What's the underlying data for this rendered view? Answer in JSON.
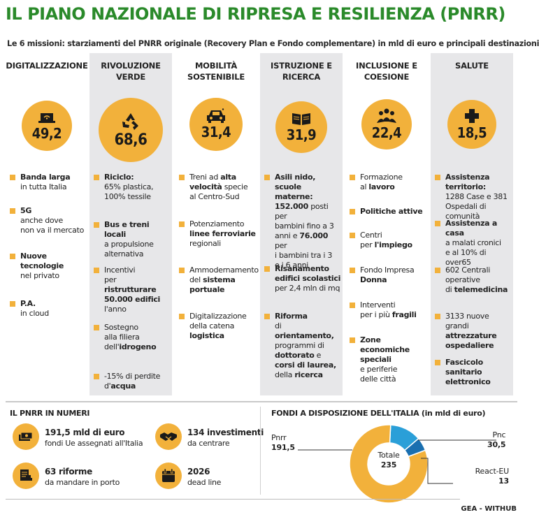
{
  "title": "IL PIANO NAZIONALE DI RIPRESA E RESILIENZA (PNRR)",
  "subtitle": "Le 6 missioni: starziamenti del PNRR originale (Recovery Plan e Fondo complementare) in mld di euro e  principali destinazioni",
  "colors": {
    "accent": "#f2b13b",
    "title": "#2a8a2a",
    "shade": "#e7e7e9",
    "blue": "#2a9fd8"
  },
  "missions": [
    {
      "name": "DIGITALIZZAZIONE",
      "value": "49,2",
      "icon": "laptop-wifi-icon",
      "items": [
        [
          "<b>Banda larga</b>",
          "in tutta Italia"
        ],
        [
          "<b>5G</b>",
          "anche dove",
          "non va il mercato"
        ],
        [
          "<b>Nuove</b>",
          "<b>tecnologie</b>",
          "nel privato"
        ],
        [
          "<b>P.A.</b>",
          "in cloud"
        ]
      ]
    },
    {
      "name": "RIVOLUZIONE VERDE",
      "value": "68,6",
      "icon": "recycle-icon",
      "items": [
        [
          "<b>Riciclo:</b>",
          "65% plastica,",
          "100% tessile"
        ],
        [
          "<b>Bus e treni locali</b>",
          "a propulsione",
          "alternativa"
        ],
        [
          "Incentivi",
          "per <b>ristrutturare</b>",
          "<b>50.000 edifici</b>",
          "l'anno"
        ],
        [
          "Sostegno",
          "alla filiera",
          "dell'<b>idrogeno</b>"
        ],
        [
          "-15% di perdite",
          "d'<b>acqua</b>"
        ]
      ]
    },
    {
      "name": "MOBILITÀ SOSTENIBILE",
      "value": "31,4",
      "icon": "car-icon",
      "items": [
        [
          "Treni ad <b>alta</b>",
          "<b>velocità</b> specie",
          "al Centro-Sud"
        ],
        [
          "Potenziamento",
          "<b>linee ferroviarie</b>",
          "regionali"
        ],
        [
          "Ammodernamento",
          "del <b>sistema</b>",
          "<b>portuale</b>"
        ],
        [
          "Digitalizzazione",
          "della catena",
          "<b>logistica</b>"
        ]
      ]
    },
    {
      "name": "ISTRUZIONE E RICERCA",
      "value": "31,9",
      "icon": "book-icon",
      "items": [
        [
          "<b>Asili nido, scuole</b>",
          "<b>materne:</b>",
          "<b>152.000</b> posti per",
          "bambini fino a 3",
          "anni e <b>76.000</b> per",
          "i bambini tra i 3",
          "e i 6 anni"
        ],
        [
          "<b>Risanamento</b>",
          "<b>edifici scolastici</b>",
          "per 2,4 mln di mq"
        ],
        [
          "<b>Riforma</b>",
          "di <b>orientamento,</b>",
          "programmi di",
          "<b>dottorato</b> e",
          "<b>corsi di laurea,</b>",
          "della <b>ricerca</b>"
        ]
      ]
    },
    {
      "name": "INCLUSIONE E COESIONE",
      "value": "22,4",
      "icon": "people-icon",
      "items": [
        [
          "Formazione",
          "al <b>lavoro</b>"
        ],
        [
          "<b>Politiche attive</b>"
        ],
        [
          "Centri",
          "per <b>l'impiego</b>"
        ],
        [
          "Fondo Impresa",
          "<b>Donna</b>"
        ],
        [
          "Interventi",
          "per i più <b>fragili</b>"
        ],
        [
          "<b>Zone economiche</b>",
          "<b>speciali</b>",
          "e periferie",
          "delle città"
        ]
      ]
    },
    {
      "name": "SALUTE",
      "value": "18,5",
      "icon": "medical-cross-icon",
      "items": [
        [
          "<b>Assistenza territorio:</b>",
          "1288 Case e 381",
          "Ospedali di comunità"
        ],
        [
          "<b>Assistenza a casa</b>",
          "a malati cronici",
          "e al 10% di over65"
        ],
        [
          "602 Centrali",
          "operative",
          "di <b>telemedicina</b>"
        ],
        [
          "3133 nuove grandi",
          "<b>attrezzature</b>",
          "<b>ospedaliere</b>"
        ],
        [
          "<b>Fascicolo sanitario</b>",
          "<b>elettronico</b>"
        ]
      ]
    }
  ],
  "numbers": {
    "title": "IL PNRR IN NUMERI",
    "stats": [
      {
        "icon": "money-stack-icon",
        "line1": "191,5 mld di euro",
        "line2": "fondi Ue assegnati all'Italia"
      },
      {
        "icon": "handshake-icon",
        "line1": "134 investimenti",
        "line2": "da centrare"
      },
      {
        "icon": "document-stamp-icon",
        "line1": "63 riforme",
        "line2": "da mandare in porto"
      },
      {
        "icon": "calendar-icon",
        "line1": "2026",
        "line2": "dead line"
      }
    ]
  },
  "funds": {
    "title": "FONDI A DISPOSIZIONE DELL'ITALIA (in mld di euro)",
    "total_label": "Totale",
    "total_value": "235",
    "slices": [
      {
        "name": "Pnrr",
        "value": "191,5",
        "amount": 191.5,
        "color": "#f2b13b"
      },
      {
        "name": "Pnc",
        "value": "30,5",
        "amount": 30.5,
        "color": "#2a9fd8"
      },
      {
        "name": "React-EU",
        "value": "13",
        "amount": 13,
        "color": "#1a6fb0"
      }
    ]
  },
  "credit": "GEA - WITHUB"
}
